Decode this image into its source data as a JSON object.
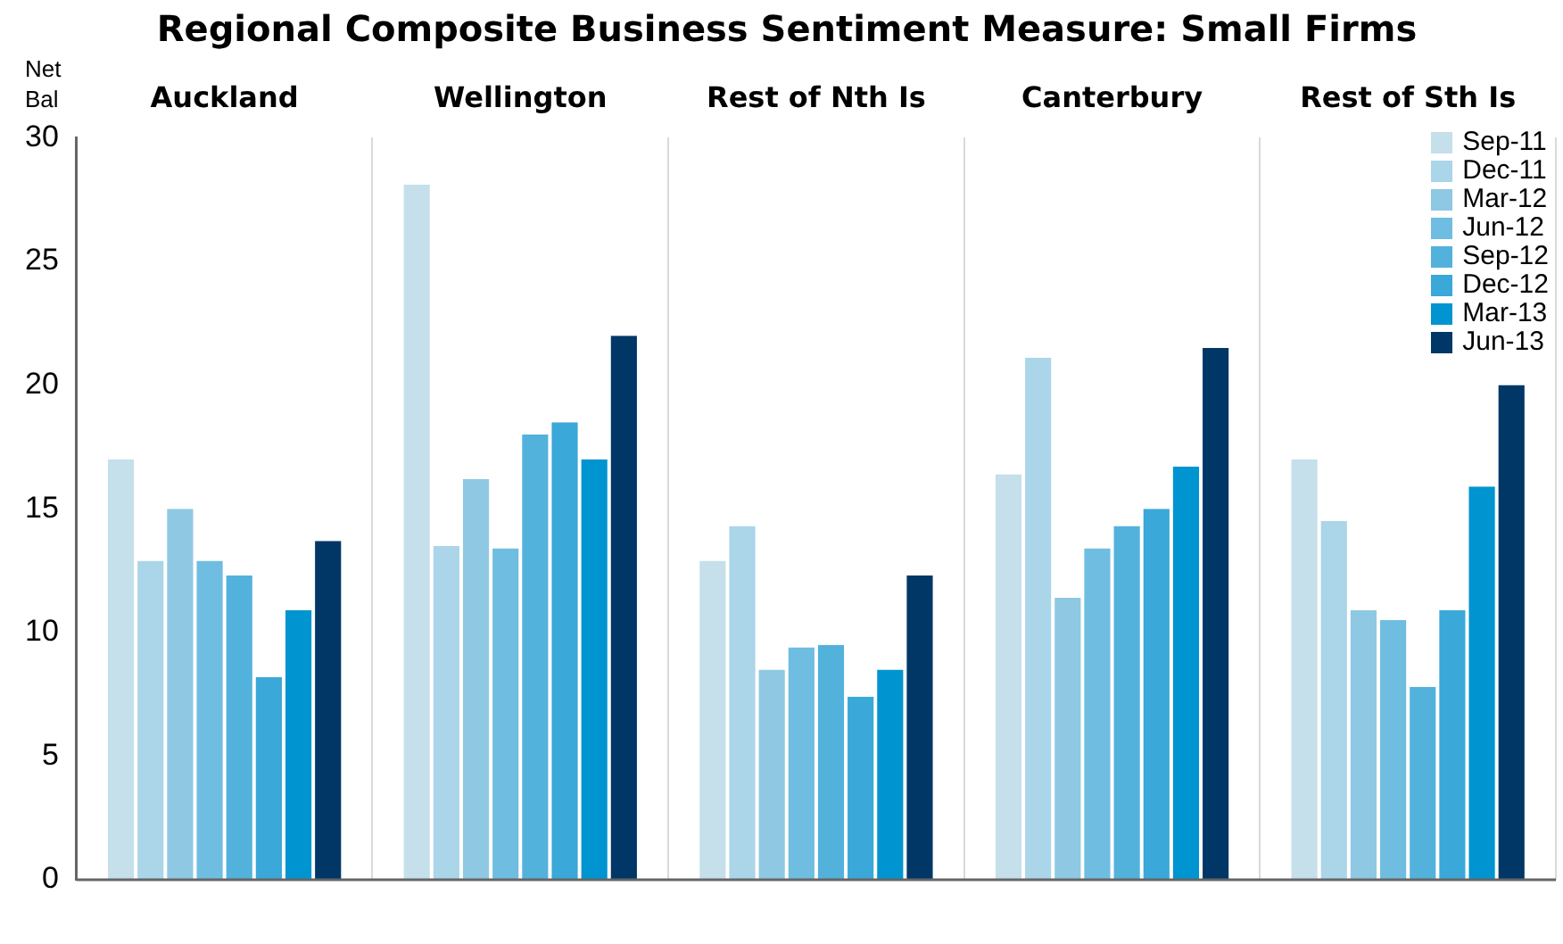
{
  "chart_data": {
    "type": "bar",
    "title": "Regional Composite Business Sentiment Measure: Small Firms",
    "ylabel": "Net Bal",
    "categories": [
      "Auckland",
      "Wellington",
      "Rest of Nth Is",
      "Canterbury",
      "Rest of Sth Is"
    ],
    "series": [
      {
        "name": "Sep-11",
        "color": "#c5dfeb",
        "values": [
          17,
          28.1,
          12.9,
          16.4,
          17
        ]
      },
      {
        "name": "Dec-11",
        "color": "#abd5e8",
        "values": [
          12.9,
          13.5,
          14.3,
          21.1,
          14.5
        ]
      },
      {
        "name": "Mar-12",
        "color": "#8fc8e3",
        "values": [
          15,
          16.2,
          8.5,
          11.4,
          10.9
        ]
      },
      {
        "name": "Jun-12",
        "color": "#6fbde0",
        "values": [
          12.9,
          13.4,
          9.4,
          13.4,
          10.5
        ]
      },
      {
        "name": "Sep-12",
        "color": "#52b2dc",
        "values": [
          12.3,
          18,
          9.5,
          14.3,
          7.8
        ]
      },
      {
        "name": "Dec-12",
        "color": "#3aa8d8",
        "values": [
          8.2,
          18.5,
          7.4,
          15,
          10.9
        ]
      },
      {
        "name": "Mar-13",
        "color": "#0094d0",
        "values": [
          10.9,
          17,
          8.5,
          16.7,
          15.9
        ]
      },
      {
        "name": "Jun-13",
        "color": "#003767",
        "values": [
          13.7,
          22,
          12.3,
          21.5,
          20
        ]
      }
    ],
    "ylim": [
      0,
      30
    ],
    "yticks": [
      0,
      5,
      10,
      15,
      20,
      25,
      30
    ],
    "grid": "x",
    "legend": "top right"
  }
}
